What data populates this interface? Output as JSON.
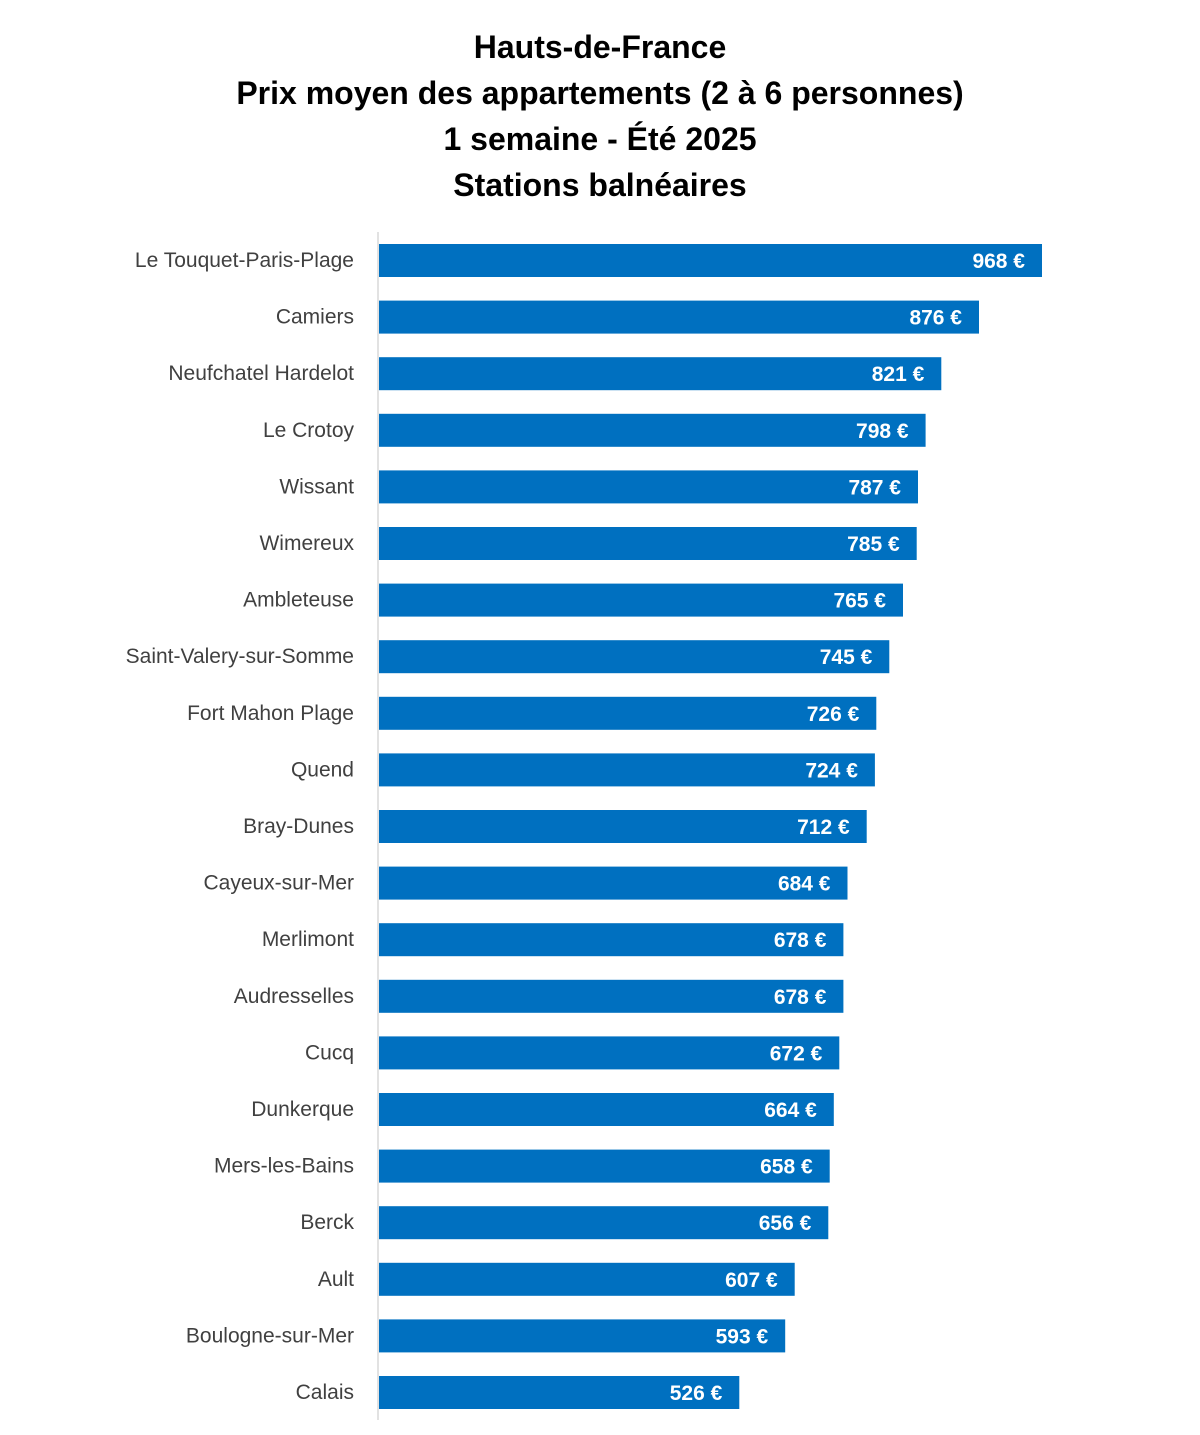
{
  "title_lines": [
    "Hauts-de-France",
    "Prix moyen des appartements (2 à 6 personnes)",
    "1 semaine - Été 2025",
    "Stations balnéaires"
  ],
  "chart_data": {
    "type": "bar",
    "orientation": "horizontal",
    "title": "Hauts-de-France / Prix moyen des appartements (2 à 6 personnes) / 1 semaine - Été 2025 / Stations balnéaires",
    "categories": [
      "Le Touquet-Paris-Plage",
      "Camiers",
      "Neufchatel Hardelot",
      "Le Crotoy",
      "Wissant",
      "Wimereux",
      "Ambleteuse",
      "Saint-Valery-sur-Somme",
      "Fort Mahon Plage",
      "Quend",
      "Bray-Dunes",
      "Cayeux-sur-Mer",
      "Merlimont",
      "Audresselles",
      "Cucq",
      "Dunkerque",
      "Mers-les-Bains",
      "Berck",
      "Ault",
      "Boulogne-sur-Mer",
      "Calais"
    ],
    "values": [
      968,
      876,
      821,
      798,
      787,
      785,
      765,
      745,
      726,
      724,
      712,
      684,
      678,
      678,
      672,
      664,
      658,
      656,
      607,
      593,
      526
    ],
    "value_labels": [
      "968 €",
      "876 €",
      "821 €",
      "798 €",
      "787 €",
      "785 €",
      "765 €",
      "745 €",
      "726 €",
      "724 €",
      "712 €",
      "684 €",
      "678 €",
      "678 €",
      "672 €",
      "664 €",
      "658 €",
      "656 €",
      "607 €",
      "593 €",
      "526 €"
    ],
    "unit": "€",
    "xlim": [
      0,
      968
    ],
    "grid": false,
    "legend": "none",
    "bar_color": "#0070C0",
    "axis_color": "#D9D9D9",
    "label_color": "#404040"
  }
}
